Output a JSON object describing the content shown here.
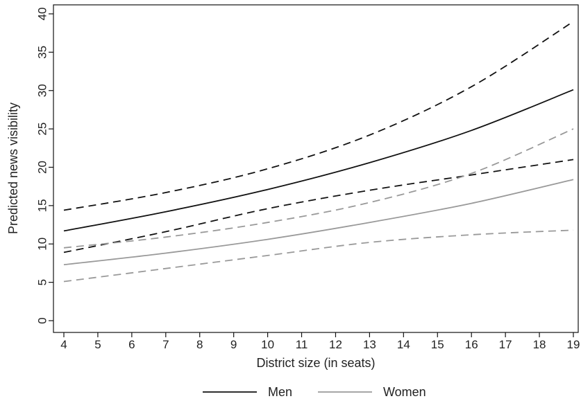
{
  "chart_data": {
    "type": "line",
    "xlabel": "District size (in seats)",
    "ylabel": "Predicted news visibility",
    "xlim": [
      4,
      19
    ],
    "ylim": [
      0,
      40
    ],
    "xticks": [
      "4",
      "5",
      "6",
      "7",
      "8",
      "9",
      "10",
      "11",
      "12",
      "13",
      "14",
      "15",
      "16",
      "17",
      "18",
      "19"
    ],
    "yticks": [
      "0",
      "5",
      "10",
      "15",
      "20",
      "25",
      "30",
      "35",
      "40"
    ],
    "grid": false,
    "legend_position": "bottom",
    "x": [
      4,
      7,
      10,
      13,
      16,
      19
    ],
    "series": [
      {
        "name": "Men",
        "style": "solid",
        "color": "#111111",
        "values": [
          11.7,
          14.2,
          17.1,
          20.6,
          24.8,
          30.1
        ],
        "legend": true
      },
      {
        "name": "",
        "style": "dashed",
        "color": "#111111",
        "values": [
          14.4,
          16.7,
          19.8,
          24.2,
          30.5,
          39.0
        ],
        "legend": false
      },
      {
        "name": "",
        "style": "dashed",
        "color": "#111111",
        "values": [
          8.9,
          11.6,
          14.6,
          17.0,
          19.0,
          21.0
        ],
        "legend": false
      },
      {
        "name": "Women",
        "style": "solid",
        "color": "#999999",
        "values": [
          7.3,
          8.8,
          10.6,
          12.8,
          15.3,
          18.4
        ],
        "legend": true
      },
      {
        "name": "",
        "style": "dashed",
        "color": "#999999",
        "values": [
          9.5,
          10.9,
          12.8,
          15.4,
          19.2,
          25.0
        ],
        "legend": false
      },
      {
        "name": "",
        "style": "dashed",
        "color": "#999999",
        "values": [
          5.1,
          6.8,
          8.5,
          10.2,
          11.2,
          11.8
        ],
        "legend": false
      }
    ]
  }
}
